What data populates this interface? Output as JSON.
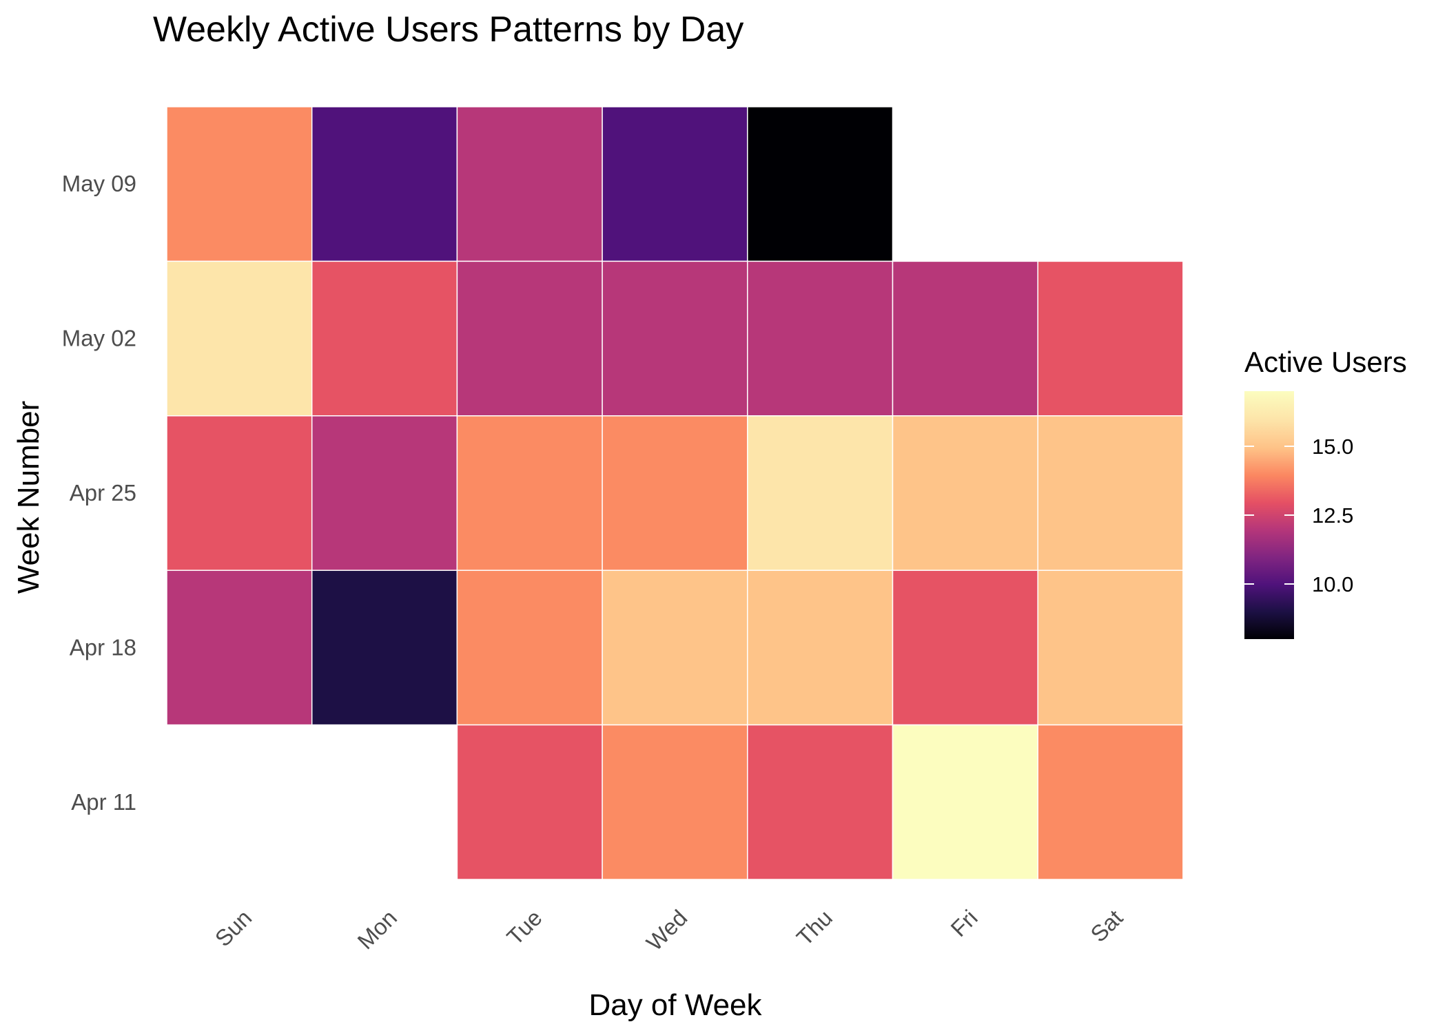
{
  "chart_data": {
    "type": "heatmap",
    "title": "Weekly Active Users Patterns by Day",
    "xlabel": "Day of Week",
    "ylabel": "Week Number",
    "x_categories": [
      "Sun",
      "Mon",
      "Tue",
      "Wed",
      "Thu",
      "Fri",
      "Sat"
    ],
    "y_categories": [
      "May 09",
      "May 02",
      "Apr 25",
      "Apr 18",
      "Apr 11"
    ],
    "values": [
      [
        14,
        10,
        12,
        10,
        8,
        null,
        null
      ],
      [
        16,
        13,
        12,
        12,
        12,
        12,
        13
      ],
      [
        13,
        12,
        14,
        14,
        16,
        15,
        15
      ],
      [
        12,
        9,
        14,
        15,
        15,
        13,
        15
      ],
      [
        null,
        null,
        13,
        14,
        13,
        17,
        14
      ]
    ],
    "legend": {
      "title": "Active Users",
      "ticks": [
        10.0,
        12.5,
        15.0
      ],
      "tick_labels": [
        "10.0",
        "12.5",
        "15.0"
      ],
      "min": 8,
      "max": 17,
      "palette": "magma",
      "position": "right"
    },
    "grid": false
  }
}
